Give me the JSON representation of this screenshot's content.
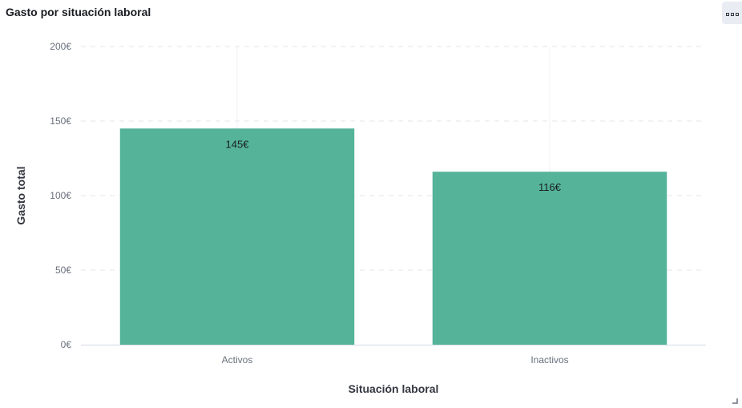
{
  "panel": {
    "title": "Gasto por situación laboral",
    "options_icon": "panel-options-icon",
    "resize_icon": "resize-corner-icon"
  },
  "chart_data": {
    "type": "bar",
    "title": "Gasto por situación laboral",
    "xlabel": "Situación laboral",
    "ylabel": "Gasto total",
    "categories": [
      "Activos",
      "Inactivos"
    ],
    "values": [
      145,
      116
    ],
    "data_labels": [
      "145€",
      "116€"
    ],
    "ylim": [
      0,
      200
    ],
    "y_ticks": [
      0,
      50,
      100,
      150,
      200
    ],
    "y_tick_labels": [
      "0€",
      "50€",
      "100€",
      "150€",
      "200€"
    ],
    "bar_color": "#54b399",
    "grid": true,
    "legend": "none"
  }
}
